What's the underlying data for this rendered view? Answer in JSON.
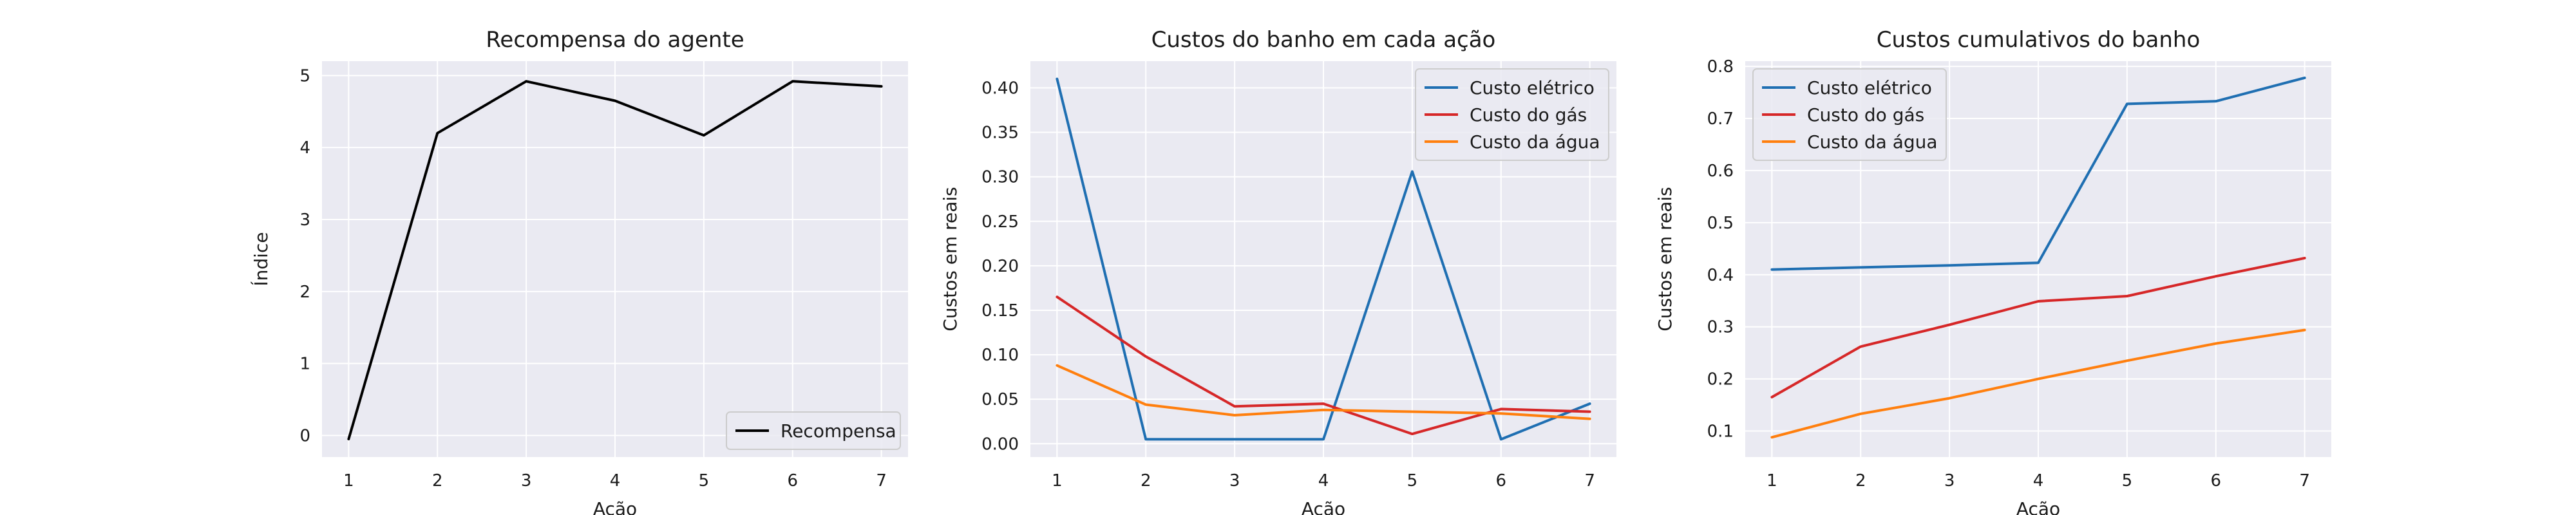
{
  "figure": {
    "background": "#ffffff",
    "panel_background": "#eaeaf2",
    "grid_color": "#ffffff"
  },
  "chart_data": [
    {
      "type": "line",
      "title": "Recompensa do agente",
      "xlabel": "Ação",
      "ylabel": "Índice",
      "x": [
        1,
        2,
        3,
        4,
        5,
        6,
        7
      ],
      "xlim": [
        0.7,
        7.3
      ],
      "ylim": [
        -0.3,
        5.2
      ],
      "xticks": [
        1,
        2,
        3,
        4,
        5,
        6,
        7
      ],
      "yticks": [
        0,
        1,
        2,
        3,
        4,
        5
      ],
      "ytick_labels": [
        "0",
        "1",
        "2",
        "3",
        "4",
        "5"
      ],
      "grid": true,
      "legend_position": "lower right",
      "series": [
        {
          "name": "Recompensa",
          "color": "#000000",
          "values": [
            -0.05,
            4.2,
            4.92,
            4.65,
            4.17,
            4.92,
            4.85
          ]
        }
      ]
    },
    {
      "type": "line",
      "title": "Custos do banho em cada ação",
      "xlabel": "Ação",
      "ylabel": "Custos em reais",
      "x": [
        1,
        2,
        3,
        4,
        5,
        6,
        7
      ],
      "xlim": [
        0.7,
        7.3
      ],
      "ylim": [
        -0.015,
        0.43
      ],
      "xticks": [
        1,
        2,
        3,
        4,
        5,
        6,
        7
      ],
      "yticks": [
        0,
        0.05,
        0.1,
        0.15,
        0.2,
        0.25,
        0.3,
        0.35,
        0.4
      ],
      "ytick_labels": [
        "0.00",
        "0.05",
        "0.10",
        "0.15",
        "0.20",
        "0.25",
        "0.30",
        "0.35",
        "0.40"
      ],
      "grid": true,
      "legend_position": "upper right",
      "series": [
        {
          "name": "Custo elétrico",
          "color": "#1f6fb2",
          "values": [
            0.41,
            0.005,
            0.005,
            0.005,
            0.306,
            0.005,
            0.045
          ]
        },
        {
          "name": "Custo do gás",
          "color": "#d62728",
          "values": [
            0.165,
            0.098,
            0.042,
            0.045,
            0.011,
            0.039,
            0.036
          ]
        },
        {
          "name": "Custo da água",
          "color": "#ff7f0e",
          "values": [
            0.088,
            0.044,
            0.032,
            0.038,
            0.036,
            0.034,
            0.028
          ]
        }
      ]
    },
    {
      "type": "line",
      "title": "Custos cumulativos do banho",
      "xlabel": "Ação",
      "ylabel": "Custos em reais",
      "x": [
        1,
        2,
        3,
        4,
        5,
        6,
        7
      ],
      "xlim": [
        0.7,
        7.3
      ],
      "ylim": [
        0.05,
        0.81
      ],
      "xticks": [
        1,
        2,
        3,
        4,
        5,
        6,
        7
      ],
      "yticks": [
        0.1,
        0.2,
        0.3,
        0.4,
        0.5,
        0.6,
        0.7,
        0.8
      ],
      "ytick_labels": [
        "0.1",
        "0.2",
        "0.3",
        "0.4",
        "0.5",
        "0.6",
        "0.7",
        "0.8"
      ],
      "grid": true,
      "legend_position": "upper left",
      "series": [
        {
          "name": "Custo elétrico",
          "color": "#1f6fb2",
          "values": [
            0.41,
            0.414,
            0.418,
            0.423,
            0.728,
            0.733,
            0.778
          ]
        },
        {
          "name": "Custo do gás",
          "color": "#d62728",
          "values": [
            0.165,
            0.262,
            0.304,
            0.349,
            0.359,
            0.397,
            0.432
          ]
        },
        {
          "name": "Custo da água",
          "color": "#ff7f0e",
          "values": [
            0.088,
            0.133,
            0.163,
            0.2,
            0.235,
            0.268,
            0.294
          ]
        }
      ]
    }
  ]
}
